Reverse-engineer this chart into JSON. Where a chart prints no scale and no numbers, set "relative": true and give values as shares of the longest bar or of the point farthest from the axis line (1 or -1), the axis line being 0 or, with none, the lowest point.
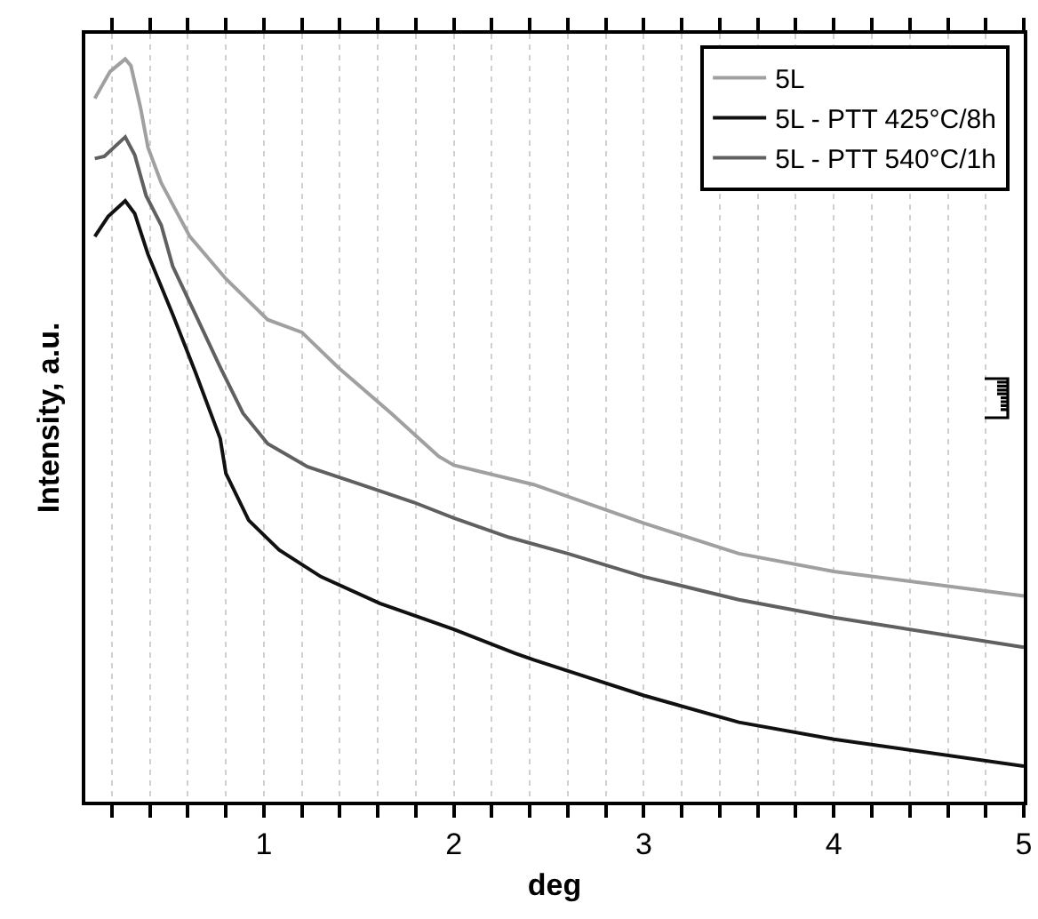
{
  "chart_data": {
    "type": "line",
    "xlabel": "deg",
    "ylabel": "Intensity, a.u.",
    "relative": true,
    "grid": "x",
    "legend": "top right",
    "line_style": "solid",
    "marker": "none",
    "xlim": [
      0.06,
      5
    ],
    "xticks": [
      {
        "value": 0.2,
        "label": null
      },
      {
        "value": 0.4,
        "label": null
      },
      {
        "value": 0.6,
        "label": null
      },
      {
        "value": 0.8,
        "label": null
      },
      1,
      {
        "value": 1.2,
        "label": null
      },
      {
        "value": 1.4,
        "label": null
      },
      {
        "value": 1.6,
        "label": null
      },
      {
        "value": 1.8,
        "label": null
      },
      2,
      {
        "value": 2.2,
        "label": null
      },
      {
        "value": 2.4,
        "label": null
      },
      {
        "value": 2.6,
        "label": null
      },
      {
        "value": 2.8,
        "label": null
      },
      3,
      {
        "value": 3.2,
        "label": null
      },
      {
        "value": 3.4,
        "label": null
      },
      {
        "value": 3.6,
        "label": null
      },
      {
        "value": 3.8,
        "label": null
      },
      4,
      {
        "value": 4.2,
        "label": null
      },
      {
        "value": 4.4,
        "label": null
      },
      {
        "value": 4.6,
        "label": null
      },
      {
        "value": 4.8,
        "label": null
      },
      5
    ],
    "series": [
      {
        "name": "5L",
        "color": "#a0a0a0",
        "x": [
          0.11,
          0.19,
          0.27,
          0.3,
          0.35,
          0.39,
          0.46,
          0.61,
          0.8,
          1.02,
          1.2,
          1.39,
          1.67,
          1.92,
          2,
          2.42,
          3,
          3.5,
          4,
          5
        ],
        "values": [
          0.947,
          0.983,
          1,
          0.991,
          0.935,
          0.881,
          0.833,
          0.761,
          0.704,
          0.649,
          0.632,
          0.585,
          0.523,
          0.465,
          0.453,
          0.427,
          0.375,
          0.334,
          0.31,
          0.277
        ]
      },
      {
        "name": "5L - PTT 425°C/8h",
        "color": "#111111",
        "x": [
          0.11,
          0.18,
          0.27,
          0.32,
          0.39,
          0.52,
          0.64,
          0.77,
          0.8,
          0.92,
          1.08,
          1.3,
          1.61,
          2,
          2.32,
          2.42,
          3,
          3.5,
          4,
          5
        ],
        "values": [
          0.761,
          0.788,
          0.809,
          0.792,
          0.737,
          0.656,
          0.578,
          0.489,
          0.442,
          0.379,
          0.339,
          0.303,
          0.267,
          0.232,
          0.2,
          0.191,
          0.143,
          0.107,
          0.084,
          0.048
        ]
      },
      {
        "name": "5L - PTT 540°C/1h",
        "color": "#606060",
        "x": [
          0.11,
          0.16,
          0.27,
          0.32,
          0.38,
          0.46,
          0.52,
          0.64,
          0.77,
          0.89,
          1.02,
          1.23,
          1.51,
          1.79,
          2,
          2.29,
          2.6,
          3,
          3.5,
          4,
          5
        ],
        "values": [
          0.866,
          0.869,
          0.895,
          0.871,
          0.816,
          0.776,
          0.721,
          0.656,
          0.585,
          0.523,
          0.482,
          0.451,
          0.427,
          0.403,
          0.382,
          0.356,
          0.334,
          0.303,
          0.272,
          0.248,
          0.208
        ]
      }
    ]
  }
}
